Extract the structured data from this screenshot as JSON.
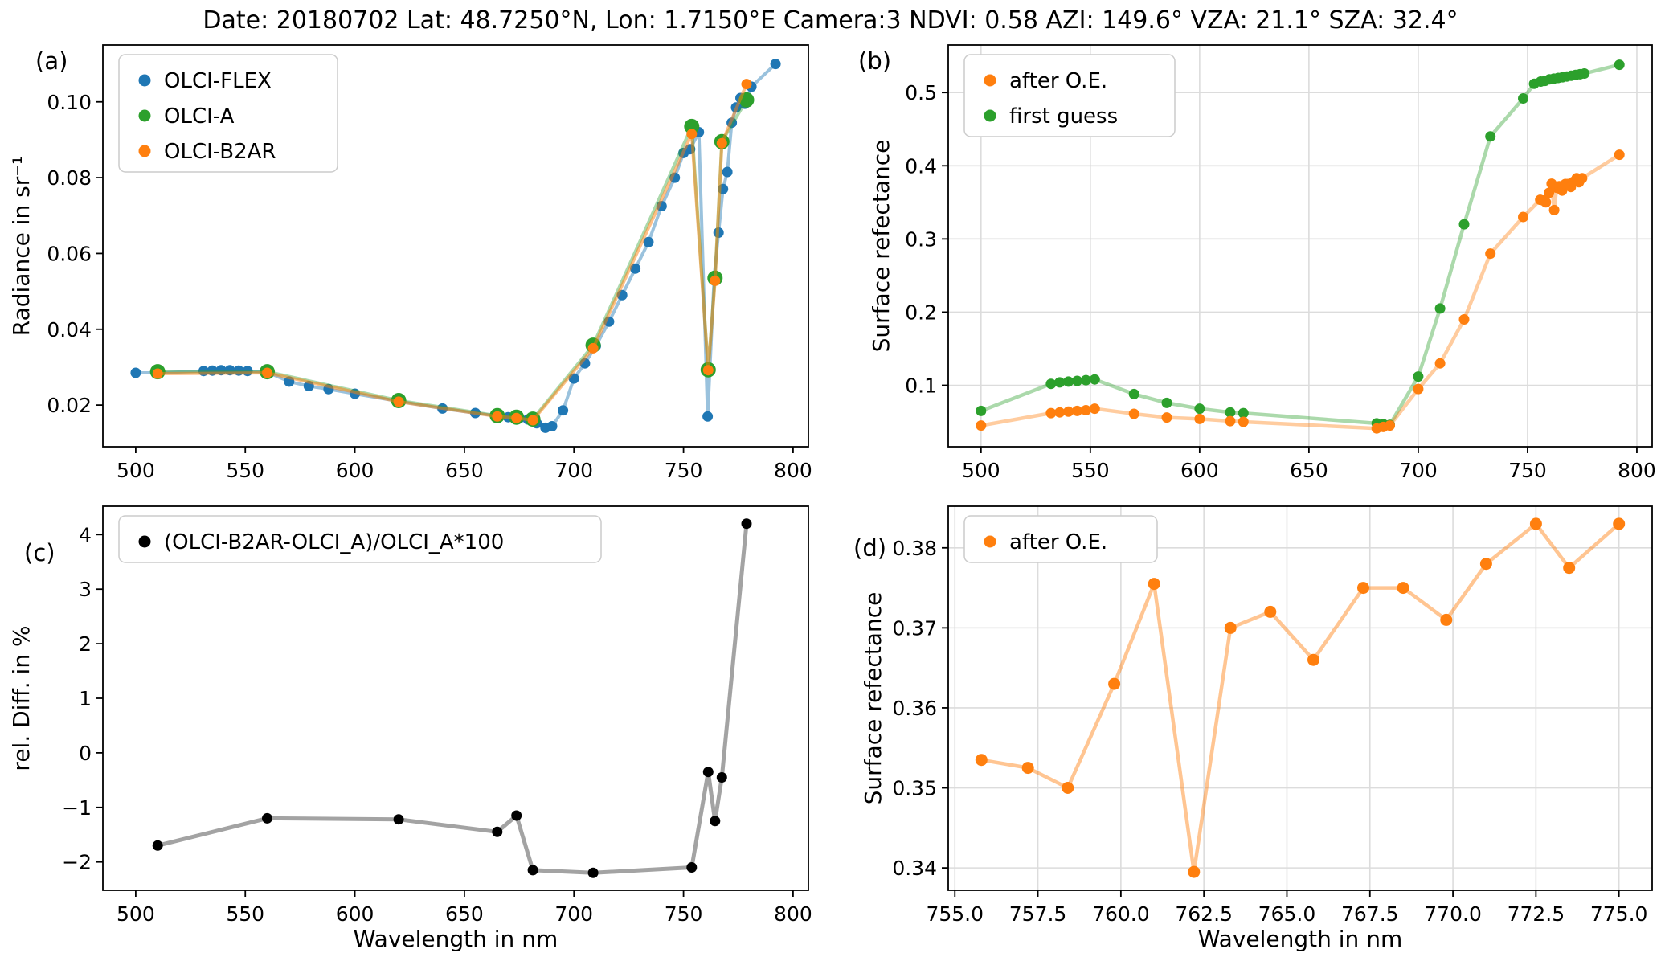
{
  "figure_title": "Date: 20180702 Lat: 48.7250°N, Lon: 1.7150°E Camera:3 NDVI: 0.58 AZI: 149.6° VZA: 21.1° SZA: 32.4°",
  "colors": {
    "blue": "#1f77b4",
    "green": "#2ca02c",
    "orange": "#ff7f0e",
    "black": "#000000",
    "gray": "#999999"
  },
  "chart_data": [
    {
      "id": "a",
      "panel_label": "(a)",
      "type": "line",
      "xlabel": "",
      "ylabel": "Radiance in sr⁻¹",
      "xlim": [
        485,
        807
      ],
      "ylim": [
        0.009,
        0.115
      ],
      "xticks": [
        500,
        550,
        600,
        650,
        700,
        750,
        800
      ],
      "yticks": [
        0.02,
        0.04,
        0.06,
        0.08,
        0.1
      ],
      "xtick_decimals": 0,
      "ytick_decimals": 2,
      "grid": false,
      "legend_loc": "upper left",
      "legend": [
        {
          "label": "OLCI-FLEX",
          "color": "#1f77b4"
        },
        {
          "label": "OLCI-A",
          "color": "#2ca02c"
        },
        {
          "label": "OLCI-B2AR",
          "color": "#ff7f0e"
        }
      ],
      "series": [
        {
          "name": "OLCI-FLEX",
          "color": "#1f77b4",
          "line_alpha": 0.45,
          "line_width": 4,
          "marker_size": 6.5,
          "x": [
            500,
            510,
            531,
            535,
            539,
            543,
            547,
            551,
            560,
            570,
            579,
            588,
            600,
            620,
            640,
            655,
            665,
            670,
            675,
            679,
            683,
            687,
            690,
            695,
            700,
            705,
            710,
            716,
            722,
            728,
            734,
            740,
            746,
            750,
            753,
            757,
            761,
            764,
            766,
            768,
            770,
            772,
            774,
            776,
            778,
            781,
            792
          ],
          "y": [
            0.0285,
            0.0285,
            0.029,
            0.0291,
            0.0292,
            0.0292,
            0.0291,
            0.029,
            0.0287,
            0.0262,
            0.025,
            0.0242,
            0.023,
            0.021,
            0.0191,
            0.0179,
            0.0171,
            0.0168,
            0.0165,
            0.0162,
            0.0152,
            0.014,
            0.0144,
            0.0186,
            0.027,
            0.031,
            0.0356,
            0.042,
            0.049,
            0.056,
            0.063,
            0.0725,
            0.08,
            0.0865,
            0.0875,
            0.092,
            0.017,
            0.054,
            0.0655,
            0.077,
            0.0815,
            0.0945,
            0.0985,
            0.101,
            0.0995,
            0.104,
            0.11
          ]
        },
        {
          "name": "OLCI-A",
          "color": "#2ca02c",
          "line_alpha": 0.4,
          "line_width": 4,
          "marker_size": 9.5,
          "x": [
            510,
            560,
            620,
            665,
            673.75,
            681.25,
            708.75,
            753.75,
            761.25,
            764.375,
            767.5,
            778.75
          ],
          "y": [
            0.0288,
            0.0288,
            0.0212,
            0.0172,
            0.0168,
            0.0163,
            0.0358,
            0.0935,
            0.0293,
            0.0535,
            0.0895,
            0.1005
          ]
        },
        {
          "name": "OLCI-B2AR",
          "color": "#ff7f0e",
          "line_alpha": 0.5,
          "line_width": 4,
          "marker_size": 6.5,
          "x": [
            510,
            560,
            620,
            665,
            673.75,
            681.25,
            708.75,
            753.75,
            761.25,
            764.375,
            767.5,
            778.75
          ],
          "y": [
            0.0283,
            0.0285,
            0.0209,
            0.017,
            0.0166,
            0.016,
            0.035,
            0.0915,
            0.0292,
            0.0528,
            0.0891,
            0.1047
          ]
        }
      ]
    },
    {
      "id": "b",
      "panel_label": "(b)",
      "type": "line",
      "xlabel": "",
      "ylabel": "Surface refectance",
      "xlim": [
        485,
        807
      ],
      "ylim": [
        0.016,
        0.565
      ],
      "xticks": [
        500,
        550,
        600,
        650,
        700,
        750,
        800
      ],
      "yticks": [
        0.1,
        0.2,
        0.3,
        0.4,
        0.5
      ],
      "xtick_decimals": 0,
      "ytick_decimals": 1,
      "grid": true,
      "legend_loc": "upper left",
      "legend": [
        {
          "label": "after O.E.",
          "color": "#ff7f0e"
        },
        {
          "label": "first guess",
          "color": "#2ca02c"
        }
      ],
      "series": [
        {
          "name": "first guess",
          "color": "#2ca02c",
          "line_alpha": 0.4,
          "line_width": 4.5,
          "marker_size": 6.5,
          "x": [
            500,
            532,
            536,
            540,
            544,
            548,
            552,
            570,
            585,
            600,
            614,
            620,
            681,
            684,
            687,
            700,
            710,
            721,
            733,
            748,
            753,
            756,
            758,
            760,
            762,
            764,
            766,
            768,
            770,
            772,
            774,
            776,
            792
          ],
          "y": [
            0.065,
            0.102,
            0.104,
            0.105,
            0.106,
            0.107,
            0.108,
            0.088,
            0.076,
            0.068,
            0.063,
            0.062,
            0.048,
            0.047,
            0.046,
            0.112,
            0.205,
            0.32,
            0.44,
            0.492,
            0.512,
            0.515,
            0.516,
            0.518,
            0.519,
            0.52,
            0.521,
            0.522,
            0.523,
            0.524,
            0.525,
            0.526,
            0.538
          ]
        },
        {
          "name": "after O.E.",
          "color": "#ff7f0e",
          "line_alpha": 0.4,
          "line_width": 4.5,
          "marker_size": 6.5,
          "x": [
            500,
            532,
            536,
            540,
            544,
            548,
            552,
            570,
            585,
            600,
            614,
            620,
            681,
            684,
            687,
            700,
            710,
            721,
            733,
            748,
            755.8,
            757.2,
            758.4,
            759.8,
            761.0,
            762.2,
            763.3,
            764.5,
            765.8,
            767.3,
            768.5,
            769.8,
            771.0,
            772.5,
            773.5,
            775.0,
            792
          ],
          "y": [
            0.045,
            0.062,
            0.063,
            0.064,
            0.065,
            0.066,
            0.068,
            0.061,
            0.056,
            0.054,
            0.051,
            0.05,
            0.041,
            0.043,
            0.045,
            0.095,
            0.13,
            0.19,
            0.28,
            0.33,
            0.3535,
            0.3525,
            0.35,
            0.363,
            0.3755,
            0.3395,
            0.37,
            0.372,
            0.366,
            0.375,
            0.375,
            0.371,
            0.378,
            0.383,
            0.3775,
            0.383,
            0.415
          ]
        }
      ]
    },
    {
      "id": "c",
      "panel_label": "(c)",
      "type": "line",
      "xlabel": "Wavelength in nm",
      "ylabel": "rel. Diff. in %",
      "xlim": [
        485,
        807
      ],
      "ylim": [
        -2.52,
        4.52
      ],
      "xticks": [
        500,
        550,
        600,
        650,
        700,
        750,
        800
      ],
      "yticks": [
        -2,
        -1,
        0,
        1,
        2,
        3,
        4
      ],
      "xtick_decimals": 0,
      "ytick_decimals": 0,
      "grid": false,
      "legend_loc": "upper left",
      "legend": [
        {
          "label": "(OLCI-B2AR-OLCI_A)/OLCI_A*100",
          "color": "#000000"
        }
      ],
      "series": [
        {
          "name": "rel diff",
          "color": "#000000",
          "line_color": "#999999",
          "line_alpha": 0.9,
          "line_width": 5,
          "marker_size": 6.5,
          "x": [
            510,
            560,
            620,
            665,
            673.75,
            681.25,
            708.75,
            753.75,
            761.25,
            764.375,
            767.5,
            778.75
          ],
          "y": [
            -1.7,
            -1.2,
            -1.22,
            -1.45,
            -1.15,
            -2.15,
            -2.2,
            -2.1,
            -0.35,
            -1.25,
            -0.45,
            4.2
          ]
        }
      ]
    },
    {
      "id": "d",
      "panel_label": "(d)",
      "type": "line",
      "xlabel": "Wavelength in nm",
      "ylabel": "Surface refectance",
      "xlim": [
        754.8,
        776.0
      ],
      "ylim": [
        0.3372,
        0.3852
      ],
      "xticks": [
        755.0,
        757.5,
        760.0,
        762.5,
        765.0,
        767.5,
        770.0,
        772.5,
        775.0
      ],
      "yticks": [
        0.34,
        0.35,
        0.36,
        0.37,
        0.38
      ],
      "xtick_decimals": 1,
      "ytick_decimals": 2,
      "grid": true,
      "legend_loc": "upper left",
      "legend": [
        {
          "label": "after O.E.",
          "color": "#ff7f0e"
        }
      ],
      "series": [
        {
          "name": "after O.E.",
          "color": "#ff7f0e",
          "line_alpha": 0.45,
          "line_width": 4.5,
          "marker_size": 7.5,
          "x": [
            755.8,
            757.2,
            758.4,
            759.8,
            761.0,
            762.2,
            763.3,
            764.5,
            765.8,
            767.3,
            768.5,
            769.8,
            771.0,
            772.5,
            773.5,
            775.0
          ],
          "y": [
            0.3535,
            0.3525,
            0.35,
            0.363,
            0.3755,
            0.3395,
            0.37,
            0.372,
            0.366,
            0.375,
            0.375,
            0.371,
            0.378,
            0.383,
            0.3775,
            0.383
          ]
        }
      ]
    }
  ]
}
